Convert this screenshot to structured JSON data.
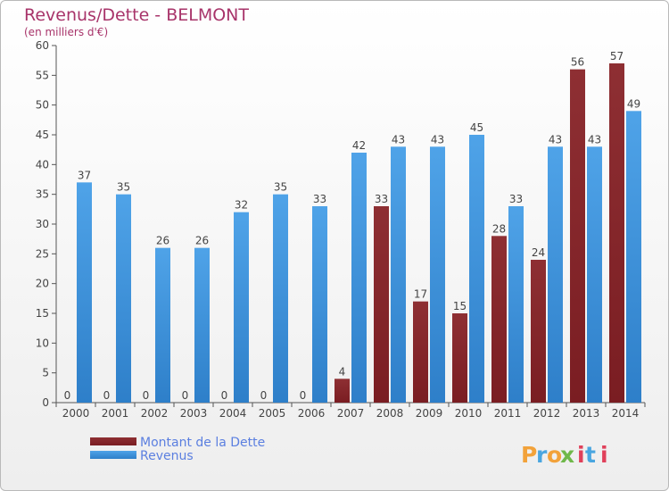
{
  "header": {
    "title": "Revenus/Dette - BELMONT",
    "subtitle": "(en milliers d'€)"
  },
  "branding": {
    "logo_text": "Proxiti",
    "letters": [
      "P",
      "r",
      "o",
      "x",
      "i",
      "t",
      "i"
    ]
  },
  "colors": {
    "dette": "#7a1d22",
    "revenus": "#4fa3e8",
    "title": "#a8346a",
    "legend": "#5b7fe0"
  },
  "chart_data": {
    "type": "bar",
    "title": "Revenus/Dette - BELMONT",
    "ylabel": "(en milliers d'€)",
    "xlabel": "",
    "ylim": [
      0,
      60
    ],
    "yticks": [
      0,
      5,
      10,
      15,
      20,
      25,
      30,
      35,
      40,
      45,
      50,
      55,
      60
    ],
    "grid": false,
    "legend_position": "bottom-left",
    "categories": [
      "2000",
      "2001",
      "2002",
      "2003",
      "2004",
      "2005",
      "2006",
      "2007",
      "2008",
      "2009",
      "2010",
      "2011",
      "2012",
      "2013",
      "2014"
    ],
    "series": [
      {
        "name": "Montant de la Dette",
        "values": [
          0,
          0,
          0,
          0,
          0,
          0,
          0,
          4,
          33,
          17,
          15,
          28,
          24,
          56,
          57
        ]
      },
      {
        "name": "Revenus",
        "values": [
          37,
          35,
          26,
          26,
          32,
          35,
          33,
          42,
          43,
          43,
          45,
          33,
          43,
          43,
          49
        ]
      }
    ]
  }
}
